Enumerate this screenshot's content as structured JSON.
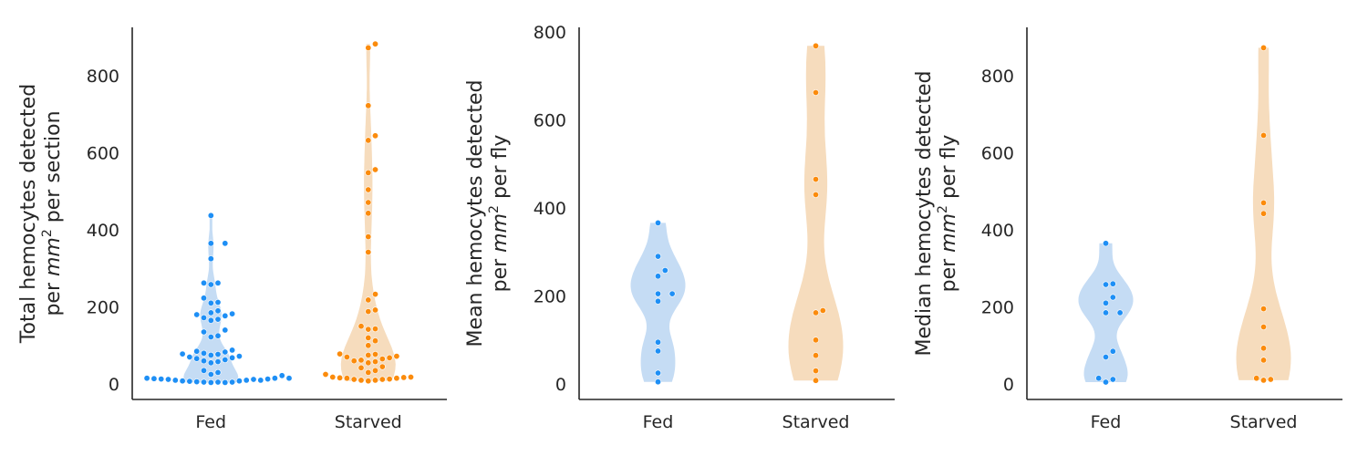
{
  "colors": {
    "fed": "#1e8ff5",
    "fed_fill": "#c5dcf4",
    "starved": "#fb8b0c",
    "starved_fill": "#f6dcbd"
  },
  "chart_data": [
    {
      "type": "scatter",
      "style": "violin with swarm points",
      "categories": [
        "Fed",
        "Starved"
      ],
      "ylabel": {
        "line1": "Total hemocytes detected",
        "line2_prefix": "per ",
        "line2_var": "mm",
        "line2_exp": "2",
        "line2_suffix": " per section"
      },
      "ylim": [
        -40,
        925
      ],
      "yticks": [
        0,
        200,
        400,
        600,
        800
      ],
      "grid": false,
      "series": [
        {
          "category": "Fed",
          "values": [
            437,
            365,
            365,
            325,
            262,
            262,
            258,
            223,
            212,
            210,
            190,
            185,
            182,
            180,
            177,
            172,
            168,
            165,
            140,
            135,
            125,
            122,
            88,
            85,
            83,
            80,
            78,
            77,
            75,
            72,
            70,
            68,
            66,
            63,
            60,
            58,
            55,
            35,
            30,
            25,
            22,
            15,
            15,
            13,
            12,
            10,
            10,
            8,
            7,
            5,
            5,
            4,
            4,
            5,
            6,
            8,
            10,
            12,
            13,
            14,
            15
          ]
        },
        {
          "category": "Starved",
          "values": [
            882,
            872,
            722,
            644,
            632,
            556,
            548,
            504,
            471,
            443,
            382,
            342,
            233,
            218,
            192,
            188,
            150,
            143,
            142,
            120,
            112,
            100,
            78,
            77,
            75,
            72,
            70,
            68,
            65,
            62,
            60,
            58,
            55,
            45,
            42,
            35,
            30,
            25,
            18,
            17,
            16,
            15,
            13,
            12,
            10,
            8,
            10,
            12,
            15,
            18
          ]
        }
      ]
    },
    {
      "type": "scatter",
      "style": "violin with swarm points",
      "categories": [
        "Fed",
        "Starved"
      ],
      "ylabel": {
        "line1": "Mean hemocytes detected",
        "line2_prefix": "per ",
        "line2_var": "mm",
        "line2_exp": "2",
        "line2_suffix": " per fly"
      },
      "ylim": [
        -35,
        810
      ],
      "yticks": [
        0,
        200,
        400,
        600,
        800
      ],
      "grid": false,
      "series": [
        {
          "category": "Fed",
          "values": [
            366,
            290,
            258,
            245,
            205,
            205,
            188,
            95,
            75,
            25,
            5
          ]
        },
        {
          "category": "Starved",
          "values": [
            768,
            662,
            465,
            430,
            167,
            162,
            100,
            65,
            30,
            8
          ]
        }
      ]
    },
    {
      "type": "scatter",
      "style": "violin with swarm points",
      "categories": [
        "Fed",
        "Starved"
      ],
      "ylabel": {
        "line1": "Median hemocytes detected",
        "line2_prefix": "per ",
        "line2_var": "mm",
        "line2_exp": "2",
        "line2_suffix": " per fly"
      },
      "ylim": [
        -40,
        925
      ],
      "yticks": [
        0,
        200,
        400,
        600,
        800
      ],
      "grid": false,
      "series": [
        {
          "category": "Fed",
          "values": [
            365,
            260,
            258,
            225,
            210,
            185,
            185,
            85,
            70,
            15,
            12,
            5
          ]
        },
        {
          "category": "Starved",
          "values": [
            872,
            645,
            470,
            442,
            195,
            148,
            93,
            62,
            15,
            12,
            10
          ]
        }
      ]
    }
  ]
}
